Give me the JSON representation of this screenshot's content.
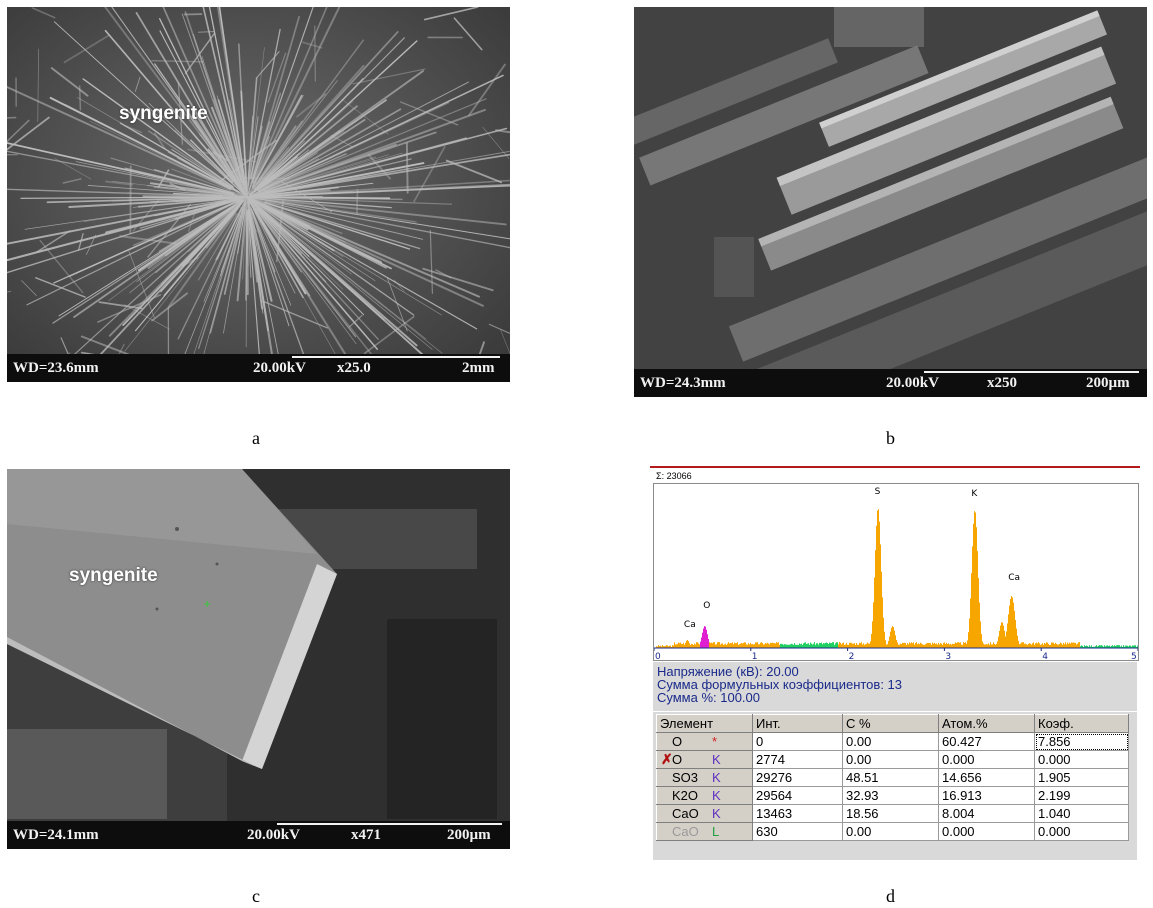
{
  "panels": [
    {
      "caption": "a",
      "label": "syngenite",
      "info_bar": {
        "wd": "WD=23.6mm",
        "kv": "20.00kV",
        "mag": "x25.0",
        "scale": "2mm"
      }
    },
    {
      "caption": "b",
      "label": "",
      "info_bar": {
        "wd": "WD=24.3mm",
        "kv": "20.00kV",
        "mag": "x250",
        "scale": "200µm"
      }
    },
    {
      "caption": "c",
      "label": "syngenite",
      "info_bar": {
        "wd": "WD=24.1mm",
        "kv": "20.00kV",
        "mag": "x471",
        "scale": "200µm"
      }
    }
  ],
  "eds": {
    "caption": "d",
    "sum_label": "Σ: 23066",
    "peak_labels": [
      "Ca",
      "O",
      "S",
      "K",
      "Ca"
    ],
    "x_ticks": [
      "0",
      "1",
      "2",
      "3",
      "4",
      "5"
    ],
    "voltage": "Напряжение (кВ): 20.00",
    "formula_sum": "Сумма формульных коэффициентов: 13",
    "percent_sum": "Сумма %: 100.00",
    "columns": [
      "Элемент",
      "Инт.",
      "C %",
      "Атом.%",
      "Коэф."
    ],
    "rows": [
      {
        "element": "O",
        "line": "*",
        "int": "0",
        "c": "0.00",
        "atom": "60.427",
        "koef": "7.856"
      },
      {
        "element": "O",
        "line": "K",
        "int": "2774",
        "c": "0.00",
        "atom": "0.000",
        "koef": "0.000"
      },
      {
        "element": "SO3",
        "line": "K",
        "int": "29276",
        "c": "48.51",
        "atom": "14.656",
        "koef": "1.905"
      },
      {
        "element": "K2O",
        "line": "K",
        "int": "29564",
        "c": "32.93",
        "atom": "16.913",
        "koef": "2.199"
      },
      {
        "element": "CaO",
        "line": "K",
        "int": "13463",
        "c": "18.56",
        "atom": "8.004",
        "koef": "1.040"
      },
      {
        "element": "CaO",
        "line": "L",
        "int": "630",
        "c": "0.00",
        "atom": "0.000",
        "koef": "0.000"
      }
    ],
    "colors": {
      "peak": "#f7a600",
      "oxygen": "#e020d0",
      "baseline": "#20d060",
      "axis": "#1a2a8a"
    }
  }
}
